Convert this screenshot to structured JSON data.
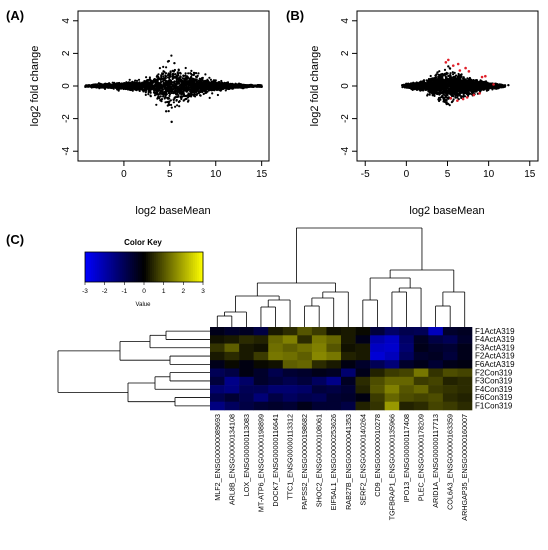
{
  "panels": {
    "a": "(A)",
    "b": "(B)",
    "c": "(C)"
  },
  "colors": {
    "points": "#000000",
    "significant": "#e0202a",
    "low": "#0000ff",
    "mid": "#000000",
    "high": "#ffff00"
  },
  "chart_data": [
    {
      "type": "scatter",
      "panel": "(A)",
      "xlabel": "log2 baseMean",
      "ylabel": "log2 fold change",
      "xlim": [
        -5,
        15.8
      ],
      "ylim": [
        -4.6,
        4.6
      ],
      "xticks": [
        0,
        5,
        10,
        15
      ],
      "yticks": [
        -4,
        -2,
        0,
        2,
        4
      ],
      "cloud_envelope": {
        "x": [
          -4.2,
          -2,
          0,
          2,
          3,
          4,
          4.5,
          5,
          6,
          7,
          8,
          9,
          10,
          11,
          12,
          13,
          14,
          15
        ],
        "half_width": [
          0.05,
          0.15,
          0.25,
          0.35,
          0.5,
          0.9,
          1.1,
          1.2,
          1.1,
          0.85,
          0.6,
          0.45,
          0.35,
          0.25,
          0.15,
          0.1,
          0.05,
          0.05
        ]
      },
      "outliers": [
        [
          -4.2,
          -0.05
        ],
        [
          -3.8,
          0.05
        ],
        [
          14.6,
          0.05
        ],
        [
          15,
          -0.05
        ],
        [
          4.8,
          1.5
        ],
        [
          5.2,
          -2.2
        ],
        [
          4.6,
          -1.55
        ],
        [
          5.5,
          1.4
        ]
      ]
    },
    {
      "type": "scatter",
      "panel": "(B)",
      "xlabel": "log2 baseMean",
      "ylabel": "log2 fold change",
      "xlim": [
        -6,
        16
      ],
      "ylim": [
        -4.6,
        4.6
      ],
      "xticks": [
        -5,
        0,
        5,
        10,
        15
      ],
      "yticks": [
        -4,
        -2,
        0,
        2,
        4
      ],
      "cloud_envelope": {
        "x": [
          -0.5,
          1,
          2,
          3,
          4,
          5,
          6,
          7,
          8,
          9,
          10,
          11,
          12
        ],
        "half_width": [
          0.1,
          0.2,
          0.3,
          0.5,
          0.8,
          1.0,
          0.8,
          0.6,
          0.45,
          0.3,
          0.2,
          0.12,
          0.05
        ]
      },
      "outliers": [
        [
          -0.5,
          0.05
        ],
        [
          -0.2,
          -0.05
        ],
        [
          12.4,
          0.05
        ],
        [
          5.1,
          1.2
        ],
        [
          4.9,
          -1.0
        ]
      ],
      "significant": [
        [
          4.8,
          1.45
        ],
        [
          5.1,
          1.6
        ],
        [
          5.7,
          1.25
        ],
        [
          6.3,
          1.35
        ],
        [
          7.2,
          1.1
        ],
        [
          7.6,
          0.9
        ],
        [
          9.6,
          0.6
        ],
        [
          5.4,
          -0.75
        ],
        [
          6.2,
          -0.9
        ],
        [
          6.9,
          -0.8
        ],
        [
          7.4,
          -0.7
        ],
        [
          8.2,
          -0.55
        ],
        [
          9.2,
          0.55
        ],
        [
          10.6,
          0.1
        ],
        [
          8.9,
          -0.45
        ],
        [
          6.5,
          0.95
        ]
      ]
    },
    {
      "type": "heatmap",
      "panel": "(C)",
      "color_key": {
        "title": "Color Key",
        "label": "Value",
        "ticks": [
          -3,
          -2,
          -1,
          0,
          1,
          2,
          3
        ]
      },
      "rows": [
        "F1ActA319",
        "F4ActA319",
        "F3ActA319",
        "F2ActA319",
        "F6ActA319",
        "F2Con319",
        "F3Con319",
        "F4Con319",
        "F6Con319",
        "F1Con319"
      ],
      "columns": [
        "MLF2_ENSG00000089693",
        "ARL8B_ENSG00000134108",
        "LOX_ENSG00000113083",
        "MT-ATP6_ENSG00000198899",
        "DOCK7_ENSG00000116641",
        "TTC1_ENSG00000113312",
        "PAPSS2_ENSG00000198682",
        "SHOC2_ENSG00000108061",
        "EIF5AL1_ENSG00000253626",
        "RAB27B_ENSG00000041353",
        "SERF2_ENSG00000140264",
        "CD9_ENSG00000010278",
        "TGFBRAP1_ENSG00000135966",
        "IPO13_ENSG00000117408",
        "PLEC_ENSG00000178209",
        "ARID1A_ENSG00000117713",
        "COL6A3_ENSG00000163359",
        "ARHGAP35_ENSG00000160007"
      ],
      "values": [
        [
          -0.3,
          -0.5,
          -0.4,
          -0.8,
          0.3,
          0.5,
          1.0,
          0.7,
          0.2,
          0.3,
          0.1,
          -0.7,
          -1.2,
          -0.9,
          -1.0,
          -2.2,
          -0.5,
          -0.4
        ],
        [
          0.2,
          0.3,
          0.5,
          0.4,
          1.2,
          1.5,
          0.5,
          1.4,
          1.2,
          0.3,
          -0.3,
          -2.0,
          -2.3,
          -1.2,
          -0.4,
          -0.8,
          -1.0,
          -0.5
        ],
        [
          0.6,
          1.1,
          0.3,
          0.2,
          1.3,
          1.1,
          1.3,
          1.5,
          1.0,
          0.2,
          0.3,
          -2.3,
          -2.4,
          -1.3,
          -0.3,
          -0.5,
          -0.6,
          -0.3
        ],
        [
          0.3,
          0.5,
          0.3,
          0.7,
          1.4,
          1.3,
          1.1,
          1.6,
          1.4,
          0.4,
          0.3,
          -2.5,
          -2.2,
          -1.1,
          -0.5,
          -0.4,
          -0.7,
          -0.3
        ],
        [
          -0.3,
          0.1,
          -0.2,
          0.1,
          0.2,
          1.1,
          1.2,
          0.5,
          0.3,
          -0.2,
          -0.5,
          -1.0,
          -1.4,
          -0.5,
          -0.3,
          -0.6,
          -0.3,
          -0.2
        ],
        [
          -1.0,
          -0.8,
          -0.2,
          -0.5,
          -0.9,
          -0.6,
          -0.5,
          -0.3,
          -0.4,
          -1.3,
          -0.3,
          0.4,
          0.7,
          0.8,
          1.4,
          0.6,
          0.9,
          0.8
        ],
        [
          -0.7,
          -1.6,
          -1.2,
          -0.5,
          -0.7,
          -0.9,
          -0.7,
          -1.1,
          -1.6,
          -0.4,
          0.5,
          0.9,
          1.2,
          1.2,
          0.7,
          0.8,
          0.4,
          0.5
        ],
        [
          -1.3,
          -1.5,
          -1.0,
          -1.0,
          -1.3,
          -1.3,
          -1.2,
          -0.7,
          -0.8,
          -0.6,
          0.4,
          1.0,
          1.5,
          1.0,
          1.2,
          0.7,
          0.6,
          0.5
        ],
        [
          -0.9,
          -0.6,
          -0.9,
          -1.4,
          -0.8,
          -1.1,
          -0.9,
          -1.0,
          -0.6,
          -0.5,
          -0.2,
          0.7,
          1.2,
          0.9,
          0.8,
          0.9,
          0.5,
          0.4
        ],
        [
          -1.5,
          -1.1,
          -0.8,
          -0.6,
          -0.5,
          -0.6,
          -0.3,
          -0.6,
          -0.6,
          -0.8,
          0.4,
          0.6,
          1.8,
          0.4,
          0.5,
          0.8,
          0.7,
          0.5
        ]
      ]
    }
  ]
}
